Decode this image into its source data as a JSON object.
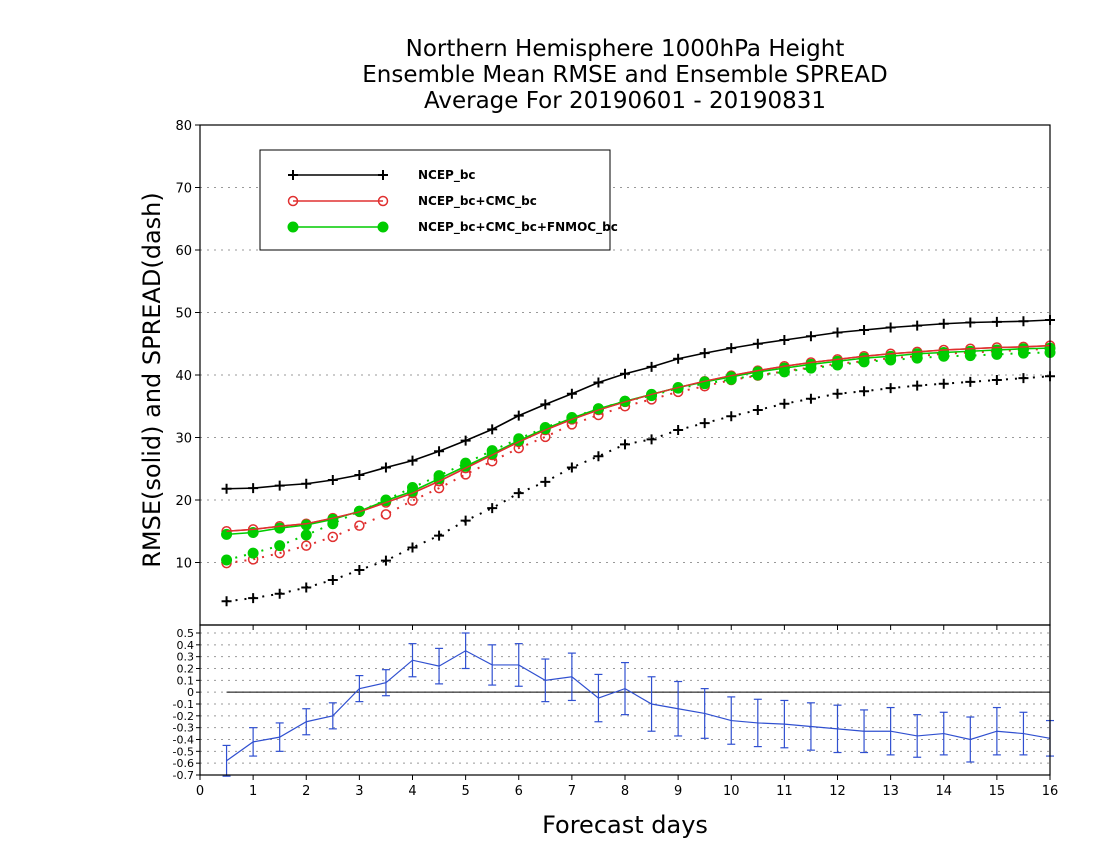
{
  "titles": {
    "line1": "Northern Hemisphere 1000hPa Height",
    "line2": "Ensemble Mean RMSE and Ensemble SPREAD",
    "line3": "Average For 20190601 - 20190831"
  },
  "chart_data": [
    {
      "type": "line",
      "title": "Northern Hemisphere 1000hPa Height Ensemble Mean RMSE and Ensemble SPREAD Average For 20190601 - 20190831",
      "ylabel": "RMSE(solid)  and  SPREAD(dash)",
      "xlabel": "Forecast days",
      "xlim": [
        0,
        16
      ],
      "ylim": [
        0,
        80
      ],
      "yticks": [
        10,
        20,
        30,
        40,
        50,
        60,
        70,
        80
      ],
      "grid": true,
      "legend_position": "top-left",
      "x": [
        0.5,
        1,
        1.5,
        2,
        2.5,
        3,
        3.5,
        4,
        4.5,
        5,
        5.5,
        6,
        6.5,
        7,
        7.5,
        8,
        8.5,
        9,
        9.5,
        10,
        10.5,
        11,
        11.5,
        12,
        12.5,
        13,
        13.5,
        14,
        14.5,
        15,
        15.5,
        16
      ],
      "series": [
        {
          "name": "NCEP_bc",
          "color": "#000000",
          "marker": "plus",
          "rmse": [
            21.8,
            21.9,
            22.3,
            22.6,
            23.2,
            24.0,
            25.2,
            26.3,
            27.8,
            29.5,
            31.3,
            33.5,
            35.3,
            37.0,
            38.8,
            40.2,
            41.3,
            42.6,
            43.5,
            44.3,
            45.0,
            45.6,
            46.2,
            46.8,
            47.2,
            47.6,
            47.9,
            48.2,
            48.4,
            48.5,
            48.6,
            48.8
          ],
          "spread": [
            3.8,
            4.3,
            5.0,
            6.0,
            7.2,
            8.8,
            10.3,
            12.4,
            14.3,
            16.7,
            18.7,
            21.1,
            22.9,
            25.2,
            27.0,
            28.9,
            29.7,
            31.2,
            32.3,
            33.4,
            34.4,
            35.4,
            36.2,
            37.0,
            37.4,
            37.9,
            38.3,
            38.6,
            38.9,
            39.2,
            39.5,
            39.8
          ]
        },
        {
          "name": "NCEP_bc+CMC_bc",
          "color": "#e03030",
          "marker": "open-circle",
          "rmse": [
            15.0,
            15.3,
            15.8,
            16.2,
            17.1,
            18.1,
            19.6,
            21.1,
            23.0,
            25.1,
            27.2,
            29.3,
            31.2,
            32.9,
            34.4,
            35.7,
            36.9,
            38.0,
            39.0,
            39.9,
            40.7,
            41.4,
            42.0,
            42.5,
            43.0,
            43.4,
            43.7,
            44.0,
            44.2,
            44.4,
            44.5,
            44.7
          ],
          "spread": [
            9.9,
            10.5,
            11.5,
            12.7,
            14.1,
            15.9,
            17.7,
            19.9,
            21.9,
            24.1,
            26.2,
            28.3,
            30.1,
            32.1,
            33.6,
            35.0,
            36.1,
            37.3,
            38.2,
            39.2,
            39.9,
            40.6,
            41.2,
            41.8,
            42.2,
            42.7,
            43.0,
            43.4,
            43.6,
            43.8,
            44.0,
            44.2
          ]
        },
        {
          "name": "NCEP_bc+CMC_bc+FNMOC_bc",
          "color": "#00cc00",
          "marker": "filled-circle",
          "rmse": [
            14.5,
            14.8,
            15.5,
            16.0,
            16.9,
            18.2,
            19.9,
            21.4,
            23.4,
            25.4,
            27.4,
            29.5,
            31.4,
            33.1,
            34.6,
            35.8,
            36.9,
            38.0,
            38.9,
            39.7,
            40.5,
            41.1,
            41.7,
            42.2,
            42.7,
            43.0,
            43.4,
            43.6,
            43.8,
            44.0,
            44.2,
            44.3
          ],
          "spread": [
            10.4,
            11.5,
            12.7,
            14.4,
            16.2,
            18.2,
            20.0,
            22.0,
            23.9,
            25.9,
            27.9,
            29.8,
            31.6,
            33.2,
            34.6,
            35.8,
            36.7,
            37.9,
            38.6,
            39.3,
            40.0,
            40.5,
            41.1,
            41.6,
            42.1,
            42.4,
            42.7,
            43.0,
            43.1,
            43.3,
            43.5,
            43.6
          ]
        }
      ]
    },
    {
      "type": "line",
      "ylim": [
        -0.7,
        0.5
      ],
      "yticks": [
        -0.7,
        -0.6,
        -0.5,
        -0.4,
        -0.3,
        -0.2,
        -0.1,
        0,
        0.1,
        0.2,
        0.3,
        0.4,
        0.5
      ],
      "ytick_labels": [
        "-0.7",
        "-0.6",
        "-0.5",
        "-0.4",
        "-0.3",
        "-0.2",
        "-0.1",
        "0",
        "0.1",
        "0.2",
        "0.3",
        "0.4",
        "0.5"
      ],
      "reference_line": 0,
      "grid": true,
      "series": [
        {
          "color": "#3050d0",
          "marker": "errorbar",
          "x": [
            0.5,
            1,
            1.5,
            2,
            2.5,
            3,
            3.5,
            4,
            4.5,
            5,
            5.5,
            6,
            6.5,
            7,
            7.5,
            8,
            8.5,
            9,
            9.5,
            10,
            10.5,
            11,
            11.5,
            12,
            12.5,
            13,
            13.5,
            14,
            14.5,
            15,
            15.5,
            16
          ],
          "values": [
            -0.58,
            -0.42,
            -0.38,
            -0.25,
            -0.2,
            0.03,
            0.08,
            0.27,
            0.22,
            0.35,
            0.23,
            0.23,
            0.1,
            0.13,
            -0.05,
            0.03,
            -0.1,
            -0.14,
            -0.18,
            -0.24,
            -0.26,
            -0.27,
            -0.29,
            -0.31,
            -0.33,
            -0.33,
            -0.37,
            -0.35,
            -0.4,
            -0.33,
            -0.35,
            -0.39
          ],
          "err": [
            0.13,
            0.12,
            0.12,
            0.11,
            0.11,
            0.11,
            0.11,
            0.14,
            0.15,
            0.15,
            0.17,
            0.18,
            0.18,
            0.2,
            0.2,
            0.22,
            0.23,
            0.23,
            0.21,
            0.2,
            0.2,
            0.2,
            0.2,
            0.2,
            0.18,
            0.2,
            0.18,
            0.18,
            0.19,
            0.2,
            0.18,
            0.15
          ]
        }
      ]
    }
  ],
  "xticks": [
    0,
    1,
    2,
    3,
    4,
    5,
    6,
    7,
    8,
    9,
    10,
    11,
    12,
    13,
    14,
    15,
    16
  ],
  "xtick_labels": [
    "0",
    "1",
    "2",
    "3",
    "4",
    "5",
    "6",
    "7",
    "8",
    "9",
    "10",
    "11",
    "12",
    "13",
    "14",
    "15",
    "16"
  ]
}
